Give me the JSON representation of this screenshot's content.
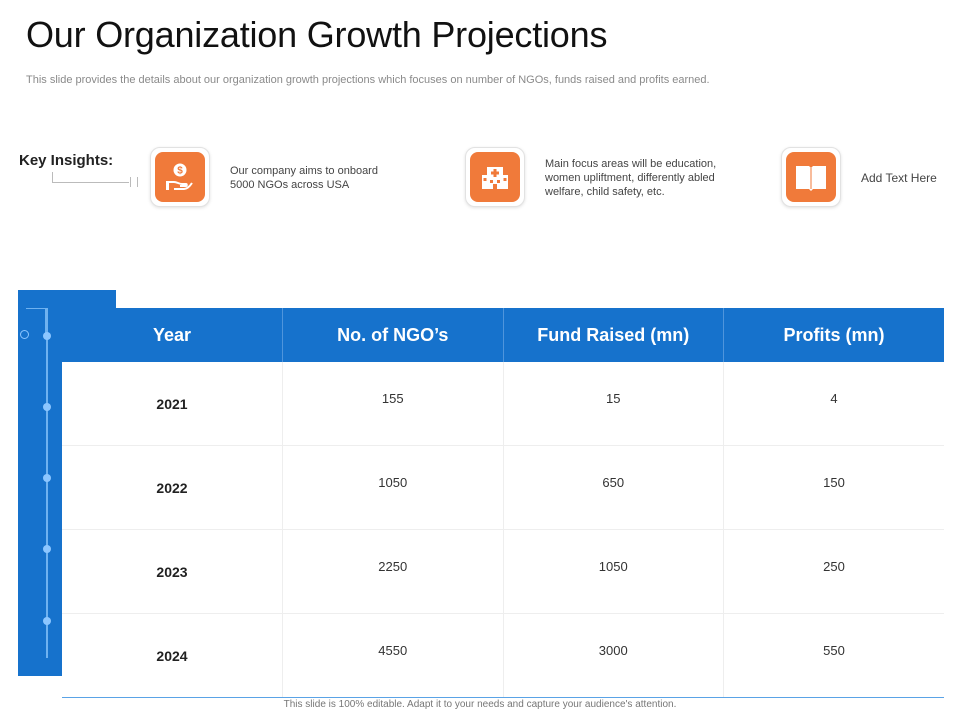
{
  "title": "Our Organization  Growth Projections",
  "subtitle": "This slide provides the details about our organization growth projections which focuses on number of NGOs, funds raised and profits earned.",
  "key_insights": {
    "label": "Key Insights:",
    "items": [
      {
        "icon": "money-hand-icon",
        "text_line1": "Our company aims to onboard",
        "text_line2": "5000 NGOs across USA",
        "text_line3": ""
      },
      {
        "icon": "building-icon",
        "text_line1": "Main focus areas will be education,",
        "text_line2": "women upliftment, differently abled",
        "text_line3": "welfare, child safety,  etc."
      },
      {
        "icon": "book-icon",
        "text_line1": "Add Text Here",
        "text_line2": "",
        "text_line3": ""
      }
    ]
  },
  "table": {
    "headers": [
      "Year",
      "No. of NGO’s",
      "Fund Raised (mn)",
      "Profits (mn)"
    ],
    "rows": [
      [
        "2021",
        "155",
        "15",
        "4"
      ],
      [
        "2022",
        "1050",
        "650",
        "150"
      ],
      [
        "2023",
        "2250",
        "1050",
        "250"
      ],
      [
        "2024",
        "4550",
        "3000",
        "550"
      ]
    ]
  },
  "footer": "This slide is 100% editable.  Adapt it to your needs and capture your audience's attention.",
  "colors": {
    "accent": "#1672cc",
    "icon_bg": "#f07a3a"
  }
}
